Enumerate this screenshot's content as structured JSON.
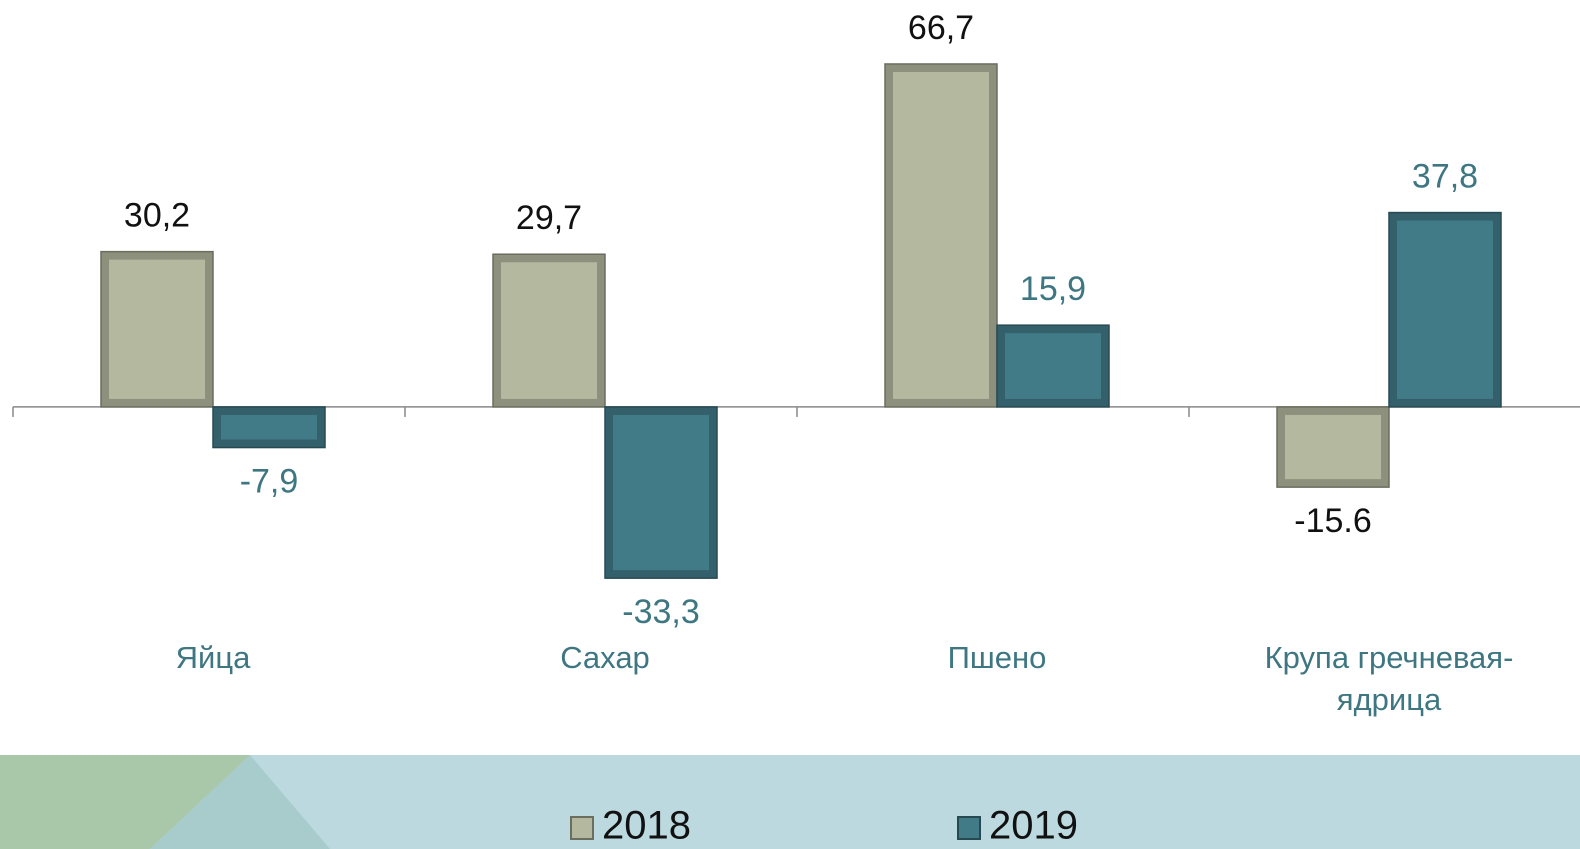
{
  "chart_data": {
    "type": "bar",
    "categories": [
      "Яйца",
      "Сахар",
      "Пшено",
      "Крупа гречневая-ядрица"
    ],
    "series": [
      {
        "name": "2018",
        "color": "#b3b89f",
        "values": [
          30.2,
          29.7,
          66.7,
          -15.6
        ],
        "value_labels": [
          "30,2",
          "29,7",
          "66,7",
          "-15.6"
        ]
      },
      {
        "name": "2019",
        "color": "#417b88",
        "values": [
          -7.9,
          -33.3,
          15.9,
          37.8
        ],
        "value_labels": [
          "-7,9",
          "-33,3",
          "15,9",
          "37,8"
        ]
      }
    ],
    "ylim": [
      -40,
      70
    ],
    "legend": "bottom"
  }
}
